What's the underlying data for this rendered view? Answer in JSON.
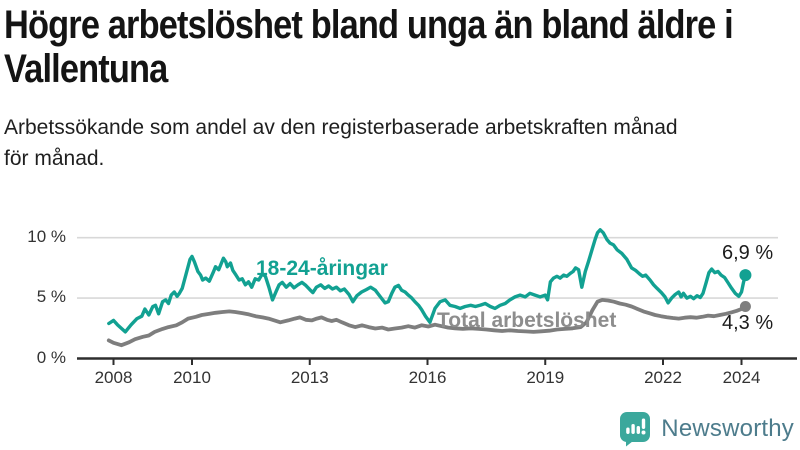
{
  "header": {
    "title_lines": [
      "Högre arbetslöshet bland unga än bland äldre i",
      "Vallentuna"
    ],
    "subtitle_lines": [
      "Arbetssökande som andel av den registerbaserade arbetskraften månad",
      "för månad."
    ]
  },
  "branding": {
    "logo_text": "Newsworthy",
    "logo_text_color": "#4D7C8C",
    "icon_color": "#3BA89C",
    "icon_name": "bar-chart-speech-bubble-icon"
  },
  "chart_data": {
    "type": "line",
    "title": "Högre arbetslöshet bland unga än bland äldre i Vallentuna",
    "subtitle": "Arbetssökande som andel av den registerbaserade arbetskraften månad för månad.",
    "x_unit": "year",
    "xlim": [
      2007.85,
      2024.6
    ],
    "ylim": [
      0,
      11.6
    ],
    "grid": "horizontal",
    "axis_color": "#2E2E2E",
    "gridline_color": "#D8D8D8",
    "x_ticks": [
      2008,
      2010,
      2013,
      2016,
      2019,
      2022,
      2024
    ],
    "y_ticks": [
      {
        "value": 0,
        "label": "0 %"
      },
      {
        "value": 5,
        "label": "5 %"
      },
      {
        "value": 10,
        "label": "10 %"
      }
    ],
    "series": [
      {
        "name": "18-24-åringar",
        "color": "#12A192",
        "end_value": 6.9,
        "end_label": "6,9 %",
        "points": [
          [
            2007.88,
            2.9
          ],
          [
            2008.0,
            3.15
          ],
          [
            2008.1,
            2.8
          ],
          [
            2008.3,
            2.2
          ],
          [
            2008.45,
            2.8
          ],
          [
            2008.6,
            3.3
          ],
          [
            2008.72,
            3.5
          ],
          [
            2008.8,
            4.1
          ],
          [
            2008.9,
            3.6
          ],
          [
            2009.0,
            4.3
          ],
          [
            2009.07,
            4.4
          ],
          [
            2009.15,
            3.7
          ],
          [
            2009.25,
            4.7
          ],
          [
            2009.33,
            4.85
          ],
          [
            2009.4,
            4.55
          ],
          [
            2009.47,
            5.25
          ],
          [
            2009.55,
            5.5
          ],
          [
            2009.62,
            5.15
          ],
          [
            2009.68,
            5.4
          ],
          [
            2009.75,
            5.8
          ],
          [
            2009.85,
            7.0
          ],
          [
            2009.95,
            8.2
          ],
          [
            2010.0,
            8.45
          ],
          [
            2010.06,
            8.0
          ],
          [
            2010.15,
            7.2
          ],
          [
            2010.22,
            6.9
          ],
          [
            2010.27,
            6.5
          ],
          [
            2010.35,
            6.65
          ],
          [
            2010.44,
            6.4
          ],
          [
            2010.55,
            7.2
          ],
          [
            2010.6,
            7.6
          ],
          [
            2010.68,
            7.35
          ],
          [
            2010.73,
            7.75
          ],
          [
            2010.8,
            8.3
          ],
          [
            2010.86,
            8.0
          ],
          [
            2010.9,
            7.6
          ],
          [
            2010.98,
            7.9
          ],
          [
            2011.04,
            7.3
          ],
          [
            2011.12,
            6.9
          ],
          [
            2011.2,
            6.5
          ],
          [
            2011.28,
            6.6
          ],
          [
            2011.36,
            6.1
          ],
          [
            2011.44,
            6.35
          ],
          [
            2011.52,
            5.9
          ],
          [
            2011.61,
            6.6
          ],
          [
            2011.7,
            6.5
          ],
          [
            2011.79,
            7.0
          ],
          [
            2011.87,
            6.8
          ],
          [
            2011.96,
            5.9
          ],
          [
            2012.05,
            4.85
          ],
          [
            2012.15,
            5.6
          ],
          [
            2012.22,
            6.1
          ],
          [
            2012.3,
            6.3
          ],
          [
            2012.4,
            5.9
          ],
          [
            2012.5,
            6.2
          ],
          [
            2012.6,
            5.85
          ],
          [
            2012.7,
            6.1
          ],
          [
            2012.8,
            6.3
          ],
          [
            2012.9,
            6.05
          ],
          [
            2013.0,
            5.7
          ],
          [
            2013.08,
            5.45
          ],
          [
            2013.17,
            5.9
          ],
          [
            2013.28,
            6.1
          ],
          [
            2013.38,
            5.8
          ],
          [
            2013.48,
            6.0
          ],
          [
            2013.58,
            5.75
          ],
          [
            2013.68,
            5.9
          ],
          [
            2013.78,
            5.6
          ],
          [
            2013.88,
            5.75
          ],
          [
            2014.0,
            5.3
          ],
          [
            2014.1,
            4.7
          ],
          [
            2014.2,
            5.2
          ],
          [
            2014.32,
            5.5
          ],
          [
            2014.44,
            5.7
          ],
          [
            2014.55,
            5.9
          ],
          [
            2014.67,
            5.65
          ],
          [
            2014.8,
            5.1
          ],
          [
            2014.92,
            4.6
          ],
          [
            2015.0,
            4.7
          ],
          [
            2015.09,
            5.4
          ],
          [
            2015.17,
            5.9
          ],
          [
            2015.26,
            6.05
          ],
          [
            2015.34,
            5.65
          ],
          [
            2015.43,
            5.5
          ],
          [
            2015.51,
            5.25
          ],
          [
            2015.6,
            5.0
          ],
          [
            2015.68,
            4.7
          ],
          [
            2015.77,
            4.4
          ],
          [
            2015.85,
            4.05
          ],
          [
            2015.95,
            3.5
          ],
          [
            2016.06,
            3.0
          ],
          [
            2016.19,
            4.15
          ],
          [
            2016.32,
            4.7
          ],
          [
            2016.45,
            4.85
          ],
          [
            2016.57,
            4.4
          ],
          [
            2016.7,
            4.3
          ],
          [
            2016.83,
            4.15
          ],
          [
            2016.96,
            4.3
          ],
          [
            2017.1,
            4.4
          ],
          [
            2017.22,
            4.3
          ],
          [
            2017.35,
            4.42
          ],
          [
            2017.47,
            4.55
          ],
          [
            2017.6,
            4.3
          ],
          [
            2017.72,
            4.15
          ],
          [
            2017.85,
            4.4
          ],
          [
            2017.98,
            4.55
          ],
          [
            2018.1,
            4.85
          ],
          [
            2018.23,
            5.1
          ],
          [
            2018.36,
            5.25
          ],
          [
            2018.49,
            5.1
          ],
          [
            2018.61,
            5.4
          ],
          [
            2018.74,
            5.25
          ],
          [
            2018.87,
            5.1
          ],
          [
            2019.0,
            5.25
          ],
          [
            2019.06,
            4.85
          ],
          [
            2019.13,
            6.35
          ],
          [
            2019.21,
            6.65
          ],
          [
            2019.3,
            6.8
          ],
          [
            2019.38,
            6.65
          ],
          [
            2019.47,
            6.9
          ],
          [
            2019.55,
            6.8
          ],
          [
            2019.64,
            7.05
          ],
          [
            2019.71,
            7.2
          ],
          [
            2019.77,
            7.5
          ],
          [
            2019.85,
            7.35
          ],
          [
            2019.93,
            5.9
          ],
          [
            2020.02,
            7.2
          ],
          [
            2020.1,
            8.0
          ],
          [
            2020.19,
            9.0
          ],
          [
            2020.27,
            9.85
          ],
          [
            2020.33,
            10.4
          ],
          [
            2020.4,
            10.65
          ],
          [
            2020.48,
            10.4
          ],
          [
            2020.57,
            9.85
          ],
          [
            2020.65,
            9.55
          ],
          [
            2020.74,
            9.4
          ],
          [
            2020.83,
            9.0
          ],
          [
            2020.95,
            8.7
          ],
          [
            2021.08,
            8.2
          ],
          [
            2021.2,
            7.5
          ],
          [
            2021.3,
            7.3
          ],
          [
            2021.4,
            7.0
          ],
          [
            2021.48,
            6.8
          ],
          [
            2021.56,
            6.9
          ],
          [
            2021.67,
            6.5
          ],
          [
            2021.76,
            6.1
          ],
          [
            2021.85,
            5.8
          ],
          [
            2021.96,
            5.45
          ],
          [
            2022.05,
            5.1
          ],
          [
            2022.13,
            4.6
          ],
          [
            2022.22,
            5.0
          ],
          [
            2022.31,
            5.3
          ],
          [
            2022.4,
            5.5
          ],
          [
            2022.46,
            5.1
          ],
          [
            2022.52,
            5.4
          ],
          [
            2022.61,
            5.0
          ],
          [
            2022.7,
            5.15
          ],
          [
            2022.78,
            4.95
          ],
          [
            2022.87,
            5.2
          ],
          [
            2022.95,
            5.05
          ],
          [
            2023.02,
            5.4
          ],
          [
            2023.1,
            6.3
          ],
          [
            2023.17,
            7.1
          ],
          [
            2023.24,
            7.4
          ],
          [
            2023.32,
            7.1
          ],
          [
            2023.4,
            7.2
          ],
          [
            2023.48,
            6.9
          ],
          [
            2023.57,
            6.7
          ],
          [
            2023.66,
            6.25
          ],
          [
            2023.75,
            5.8
          ],
          [
            2023.84,
            5.4
          ],
          [
            2023.93,
            5.15
          ],
          [
            2024.0,
            5.5
          ],
          [
            2024.05,
            6.3
          ],
          [
            2024.1,
            6.9
          ]
        ]
      },
      {
        "name": "Total arbetslöshet",
        "color": "#7E7E7E",
        "label_color": "#8D8D8D",
        "end_value": 4.3,
        "end_label": "4,3 %",
        "points": [
          [
            2007.88,
            1.5
          ],
          [
            2008.0,
            1.3
          ],
          [
            2008.2,
            1.1
          ],
          [
            2008.4,
            1.35
          ],
          [
            2008.55,
            1.6
          ],
          [
            2008.75,
            1.8
          ],
          [
            2008.9,
            1.9
          ],
          [
            2009.05,
            2.2
          ],
          [
            2009.25,
            2.45
          ],
          [
            2009.4,
            2.6
          ],
          [
            2009.6,
            2.75
          ],
          [
            2009.75,
            3.0
          ],
          [
            2009.9,
            3.3
          ],
          [
            2010.1,
            3.45
          ],
          [
            2010.25,
            3.6
          ],
          [
            2010.45,
            3.7
          ],
          [
            2010.6,
            3.78
          ],
          [
            2010.78,
            3.85
          ],
          [
            2010.95,
            3.9
          ],
          [
            2011.1,
            3.85
          ],
          [
            2011.28,
            3.76
          ],
          [
            2011.45,
            3.65
          ],
          [
            2011.62,
            3.5
          ],
          [
            2011.8,
            3.4
          ],
          [
            2011.95,
            3.3
          ],
          [
            2012.1,
            3.15
          ],
          [
            2012.25,
            3.0
          ],
          [
            2012.45,
            3.15
          ],
          [
            2012.62,
            3.3
          ],
          [
            2012.75,
            3.4
          ],
          [
            2012.9,
            3.2
          ],
          [
            2013.05,
            3.15
          ],
          [
            2013.18,
            3.3
          ],
          [
            2013.3,
            3.4
          ],
          [
            2013.44,
            3.2
          ],
          [
            2013.56,
            3.1
          ],
          [
            2013.68,
            3.2
          ],
          [
            2013.82,
            3.0
          ],
          [
            2014.0,
            2.75
          ],
          [
            2014.16,
            2.6
          ],
          [
            2014.33,
            2.75
          ],
          [
            2014.5,
            2.6
          ],
          [
            2014.67,
            2.48
          ],
          [
            2014.84,
            2.56
          ],
          [
            2015.0,
            2.4
          ],
          [
            2015.17,
            2.48
          ],
          [
            2015.34,
            2.56
          ],
          [
            2015.51,
            2.67
          ],
          [
            2015.68,
            2.56
          ],
          [
            2015.85,
            2.75
          ],
          [
            2016.02,
            2.65
          ],
          [
            2016.19,
            2.8
          ],
          [
            2016.36,
            2.67
          ],
          [
            2016.53,
            2.56
          ],
          [
            2016.7,
            2.5
          ],
          [
            2016.9,
            2.45
          ],
          [
            2017.1,
            2.5
          ],
          [
            2017.3,
            2.45
          ],
          [
            2017.5,
            2.4
          ],
          [
            2017.7,
            2.33
          ],
          [
            2017.9,
            2.28
          ],
          [
            2018.1,
            2.33
          ],
          [
            2018.3,
            2.28
          ],
          [
            2018.5,
            2.24
          ],
          [
            2018.7,
            2.2
          ],
          [
            2018.9,
            2.25
          ],
          [
            2019.1,
            2.3
          ],
          [
            2019.3,
            2.4
          ],
          [
            2019.5,
            2.45
          ],
          [
            2019.7,
            2.5
          ],
          [
            2019.9,
            2.6
          ],
          [
            2020.05,
            3.0
          ],
          [
            2020.2,
            4.0
          ],
          [
            2020.33,
            4.7
          ],
          [
            2020.45,
            4.85
          ],
          [
            2020.6,
            4.8
          ],
          [
            2020.75,
            4.7
          ],
          [
            2020.9,
            4.55
          ],
          [
            2021.05,
            4.45
          ],
          [
            2021.2,
            4.3
          ],
          [
            2021.35,
            4.1
          ],
          [
            2021.5,
            3.9
          ],
          [
            2021.65,
            3.75
          ],
          [
            2021.8,
            3.6
          ],
          [
            2021.95,
            3.5
          ],
          [
            2022.1,
            3.42
          ],
          [
            2022.25,
            3.35
          ],
          [
            2022.4,
            3.3
          ],
          [
            2022.55,
            3.38
          ],
          [
            2022.7,
            3.42
          ],
          [
            2022.85,
            3.38
          ],
          [
            2023.0,
            3.45
          ],
          [
            2023.15,
            3.55
          ],
          [
            2023.3,
            3.5
          ],
          [
            2023.45,
            3.6
          ],
          [
            2023.6,
            3.7
          ],
          [
            2023.75,
            3.82
          ],
          [
            2023.88,
            3.95
          ],
          [
            2024.0,
            4.1
          ],
          [
            2024.1,
            4.3
          ]
        ]
      }
    ]
  }
}
